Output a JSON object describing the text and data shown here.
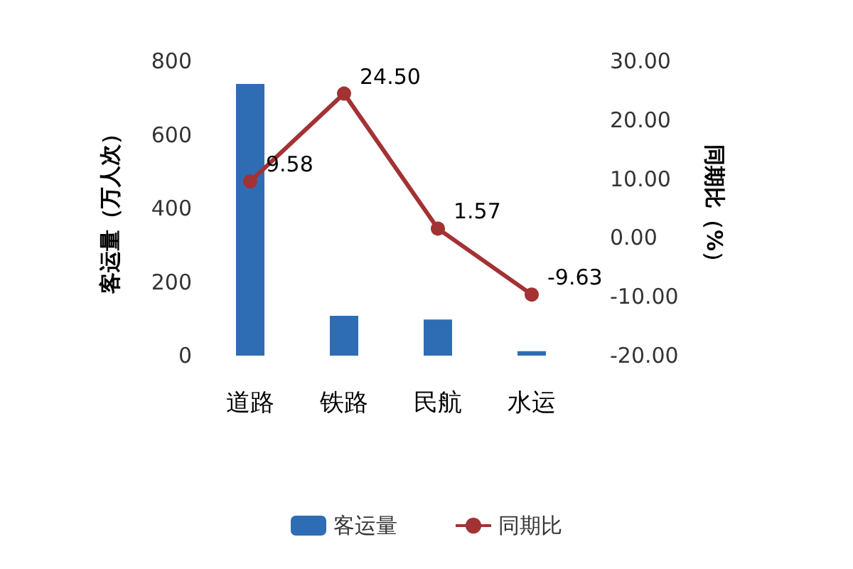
{
  "chart_data": {
    "type": "bar",
    "categories": [
      "道路",
      "铁路",
      "民航",
      "水运"
    ],
    "ylabel": "客运量（万人次）",
    "y2label": "同期比（%）",
    "series": [
      {
        "name": "客运量",
        "color": "#2e6db4",
        "values": [
          738,
          108,
          98,
          12
        ]
      },
      {
        "name": "同期比",
        "type": "line",
        "axis": "y2",
        "color": "#a33234",
        "marker": "circle",
        "values": [
          9.58,
          24.5,
          1.57,
          -9.63
        ],
        "value_labels": [
          "9.58",
          "24.50",
          "1.57",
          "-9.63"
        ]
      }
    ],
    "ylim": [
      0,
      800
    ],
    "yticks": [
      0,
      200,
      400,
      600,
      800
    ],
    "y2lim": [
      -20,
      30
    ],
    "y2ticks": [
      {
        "value": -20,
        "label": "-20.00"
      },
      {
        "value": -10,
        "label": "-10.00"
      },
      {
        "value": 0,
        "label": "0.00"
      },
      {
        "value": 10,
        "label": "10.00"
      },
      {
        "value": 20,
        "label": "20.00"
      },
      {
        "value": 30,
        "label": "30.00"
      }
    ],
    "grid": false,
    "legend": "bottom"
  }
}
